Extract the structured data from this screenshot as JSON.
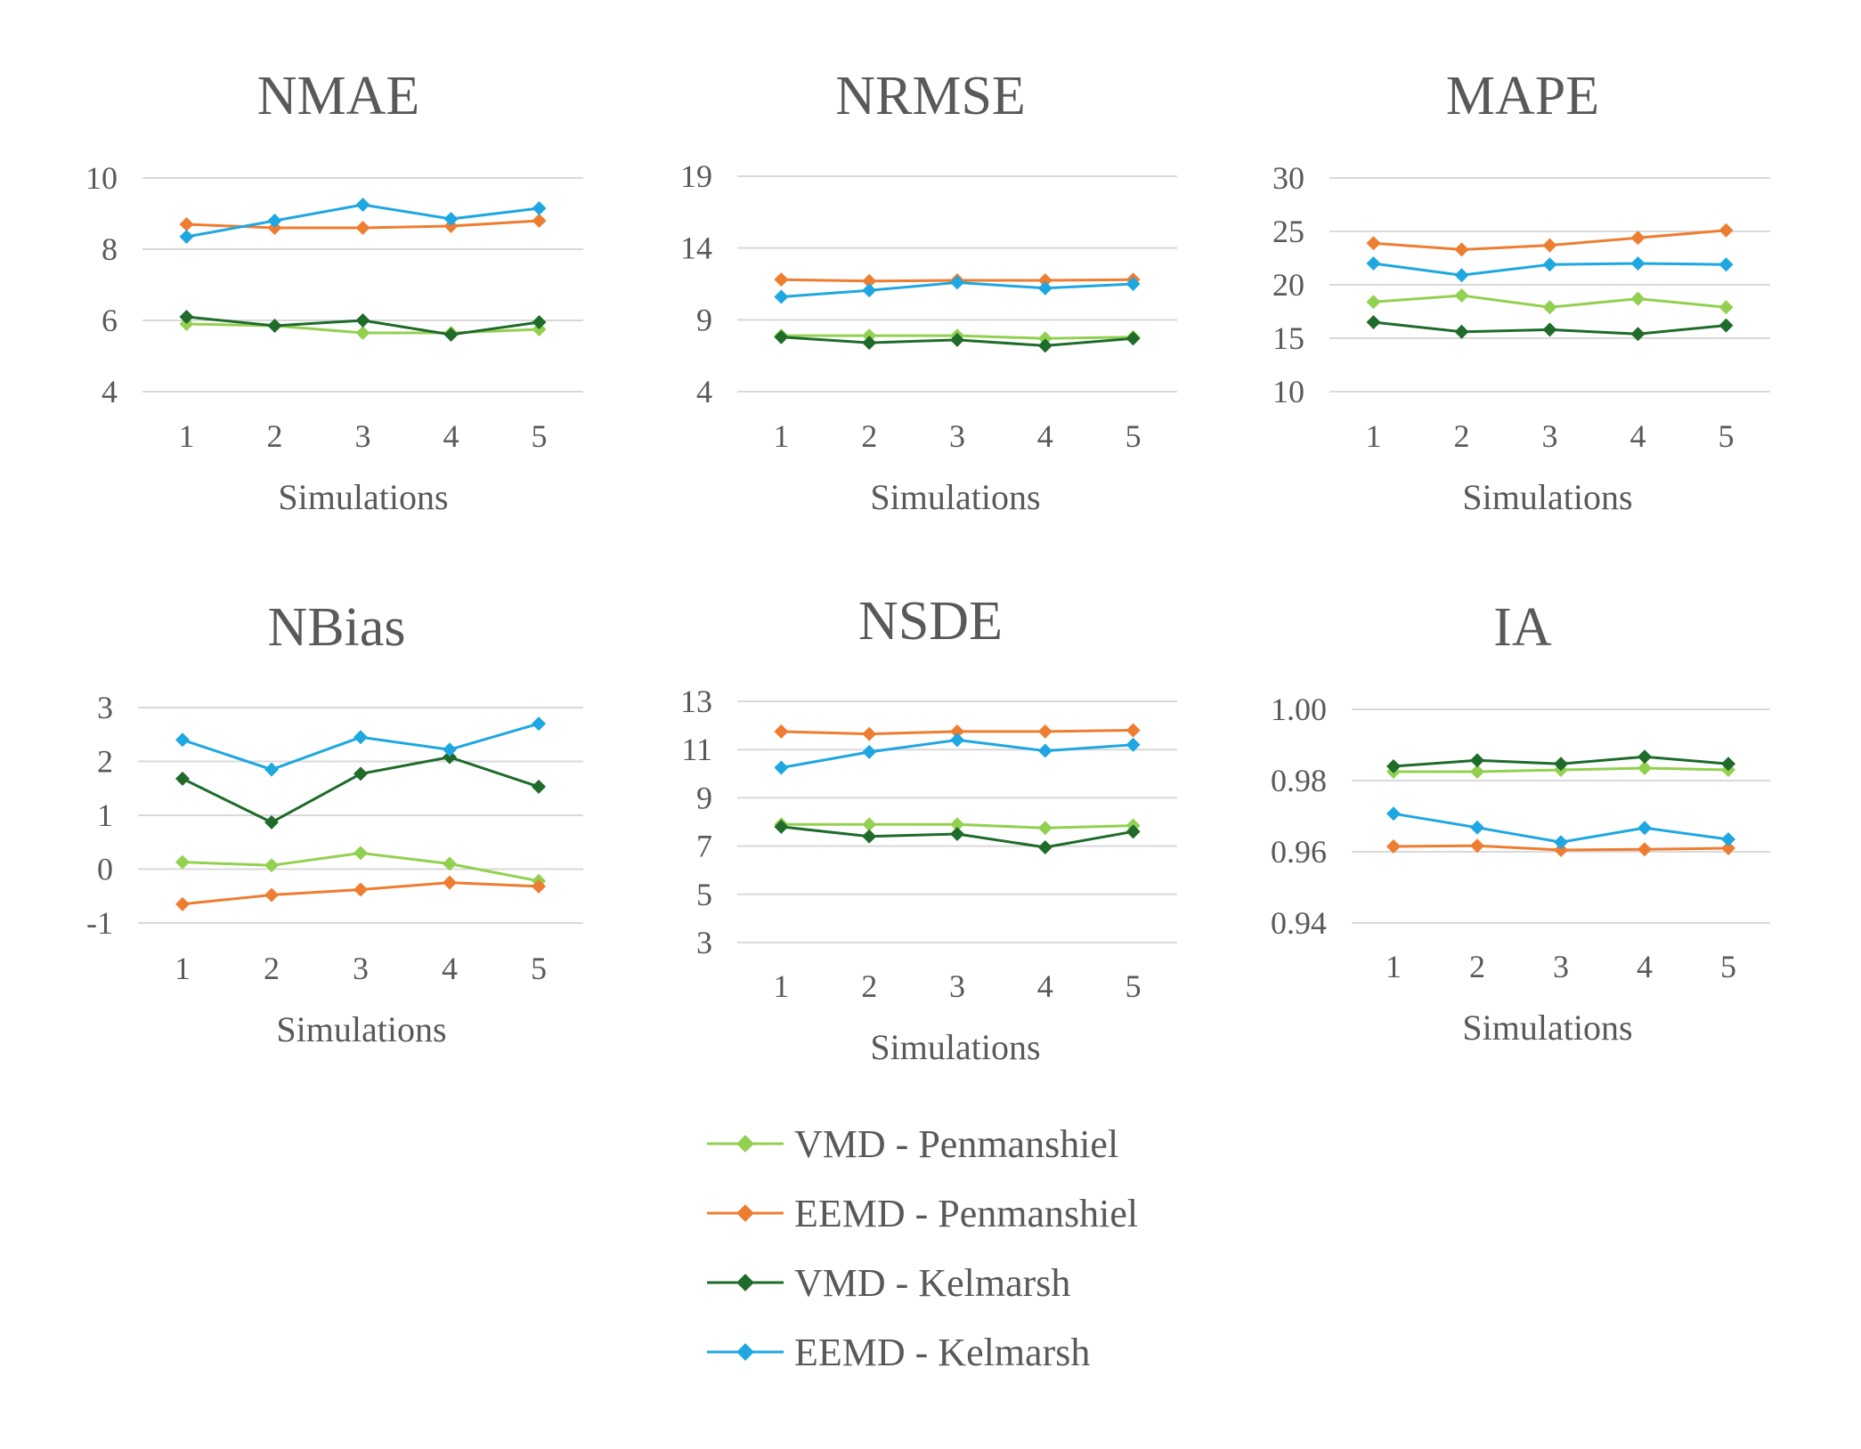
{
  "colors": {
    "vmd_penmanshiel": "#92d050",
    "eemd_penmanshiel": "#ed7d31",
    "vmd_kelmarsh": "#1e6b2a",
    "eemd_kelmarsh": "#1ea7e1",
    "grid": "#d9d9d9",
    "text": "#595959"
  },
  "legend": [
    {
      "name": "VMD - Penmanshiel",
      "color": "#92d050"
    },
    {
      "name": "EEMD - Penmanshiel",
      "color": "#ed7d31"
    },
    {
      "name": "VMD - Kelmarsh",
      "color": "#1e6b2a"
    },
    {
      "name": "EEMD - Kelmarsh",
      "color": "#1ea7e1"
    }
  ],
  "chart_data": [
    {
      "type": "line",
      "title": "NMAE",
      "xlabel": "Simulations",
      "ylabel": "",
      "x": [
        1,
        2,
        3,
        4,
        5
      ],
      "ylim": [
        4,
        10
      ],
      "yticks": [
        "4",
        "6",
        "8",
        "10"
      ],
      "series": [
        {
          "name": "VMD - Penmanshiel",
          "values": [
            5.9,
            5.85,
            5.65,
            5.65,
            5.75
          ]
        },
        {
          "name": "EEMD - Penmanshiel",
          "values": [
            8.7,
            8.6,
            8.6,
            8.65,
            8.8
          ]
        },
        {
          "name": "VMD - Kelmarsh",
          "values": [
            6.1,
            5.85,
            6.0,
            5.6,
            5.95
          ]
        },
        {
          "name": "EEMD - Kelmarsh",
          "values": [
            8.35,
            8.8,
            9.25,
            8.85,
            9.15
          ]
        }
      ]
    },
    {
      "type": "line",
      "title": "NRMSE",
      "xlabel": "Simulations",
      "ylabel": "",
      "x": [
        1,
        2,
        3,
        4,
        5
      ],
      "ylim": [
        4,
        19
      ],
      "yticks": [
        "4",
        "9",
        "14",
        "19"
      ],
      "series": [
        {
          "name": "VMD - Penmanshiel",
          "values": [
            7.9,
            7.9,
            7.9,
            7.7,
            7.8
          ]
        },
        {
          "name": "EEMD - Penmanshiel",
          "values": [
            11.8,
            11.7,
            11.75,
            11.75,
            11.8
          ]
        },
        {
          "name": "VMD - Kelmarsh",
          "values": [
            7.8,
            7.4,
            7.6,
            7.2,
            7.7
          ]
        },
        {
          "name": "EEMD - Kelmarsh",
          "values": [
            10.6,
            11.05,
            11.6,
            11.2,
            11.5
          ]
        }
      ]
    },
    {
      "type": "line",
      "title": "MAPE",
      "xlabel": "Simulations",
      "ylabel": "",
      "x": [
        1,
        2,
        3,
        4,
        5
      ],
      "ylim": [
        10,
        30
      ],
      "yticks": [
        "10",
        "15",
        "20",
        "25",
        "30"
      ],
      "series": [
        {
          "name": "VMD - Penmanshiel",
          "values": [
            18.4,
            19.0,
            17.9,
            18.7,
            17.9
          ]
        },
        {
          "name": "EEMD - Penmanshiel",
          "values": [
            23.9,
            23.3,
            23.7,
            24.4,
            25.1
          ]
        },
        {
          "name": "VMD - Kelmarsh",
          "values": [
            16.5,
            15.6,
            15.8,
            15.4,
            16.2
          ]
        },
        {
          "name": "EEMD - Kelmarsh",
          "values": [
            22.0,
            20.9,
            21.9,
            22.0,
            21.9
          ]
        }
      ]
    },
    {
      "type": "line",
      "title": "NBias",
      "xlabel": "Simulations",
      "ylabel": "",
      "x": [
        1,
        2,
        3,
        4,
        5
      ],
      "ylim": [
        -1,
        3
      ],
      "yticks": [
        "-1",
        "0",
        "1",
        "2",
        "3"
      ],
      "series": [
        {
          "name": "VMD - Penmanshiel",
          "values": [
            0.13,
            0.07,
            0.3,
            0.1,
            -0.22
          ]
        },
        {
          "name": "EEMD - Penmanshiel",
          "values": [
            -0.65,
            -0.48,
            -0.38,
            -0.25,
            -0.32
          ]
        },
        {
          "name": "VMD - Kelmarsh",
          "values": [
            1.68,
            0.87,
            1.77,
            2.08,
            1.53
          ]
        },
        {
          "name": "EEMD - Kelmarsh",
          "values": [
            2.4,
            1.85,
            2.45,
            2.22,
            2.7
          ]
        }
      ]
    },
    {
      "type": "line",
      "title": "NSDE",
      "xlabel": "Simulations",
      "ylabel": "",
      "x": [
        1,
        2,
        3,
        4,
        5
      ],
      "ylim": [
        3,
        13
      ],
      "yticks": [
        "3",
        "5",
        "7",
        "9",
        "11",
        "13"
      ],
      "series": [
        {
          "name": "VMD - Penmanshiel",
          "values": [
            7.9,
            7.9,
            7.9,
            7.75,
            7.85
          ]
        },
        {
          "name": "EEMD - Penmanshiel",
          "values": [
            11.75,
            11.65,
            11.75,
            11.75,
            11.8
          ]
        },
        {
          "name": "VMD - Kelmarsh",
          "values": [
            7.8,
            7.4,
            7.5,
            6.95,
            7.6
          ]
        },
        {
          "name": "EEMD - Kelmarsh",
          "values": [
            10.25,
            10.9,
            11.4,
            10.95,
            11.2
          ]
        }
      ]
    },
    {
      "type": "line",
      "title": "IA",
      "xlabel": "Simulations",
      "ylabel": "",
      "x": [
        1,
        2,
        3,
        4,
        5
      ],
      "ylim": [
        0.94,
        1.0
      ],
      "yticks": [
        "0.94",
        "0.96",
        "0.98",
        "1.00"
      ],
      "series": [
        {
          "name": "VMD - Penmanshiel",
          "values": [
            0.9825,
            0.9825,
            0.983,
            0.9835,
            0.983
          ]
        },
        {
          "name": "EEMD - Penmanshiel",
          "values": [
            0.9615,
            0.9617,
            0.9605,
            0.9607,
            0.961
          ]
        },
        {
          "name": "VMD - Kelmarsh",
          "values": [
            0.984,
            0.9857,
            0.9847,
            0.9867,
            0.9847
          ]
        },
        {
          "name": "EEMD - Kelmarsh",
          "values": [
            0.9707,
            0.9668,
            0.9627,
            0.9667,
            0.9635
          ]
        }
      ]
    }
  ]
}
